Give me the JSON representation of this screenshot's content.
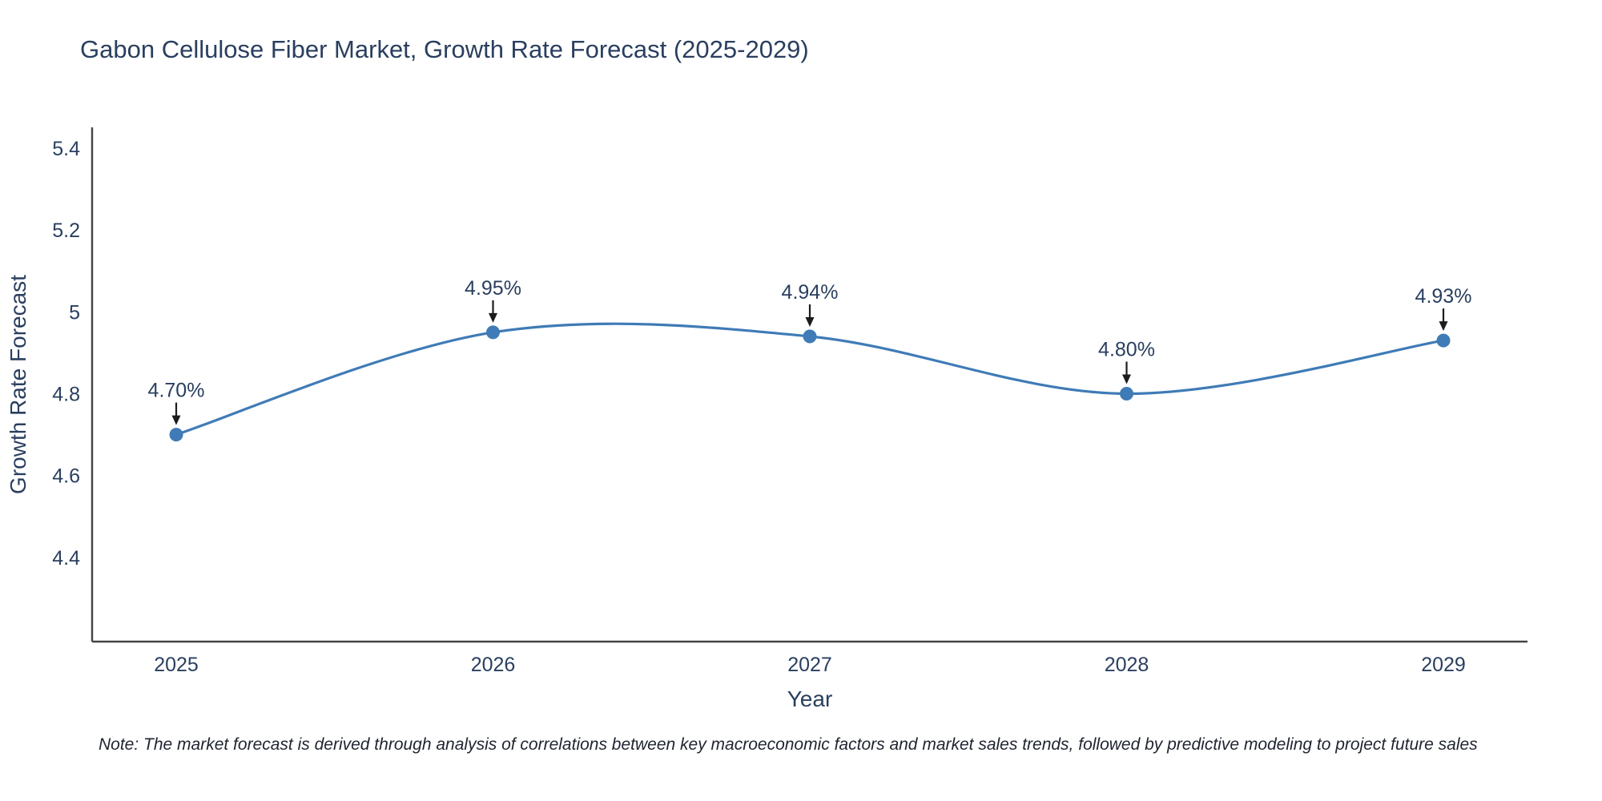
{
  "figure": {
    "title": "Gabon Cellulose Fiber Market, Growth Rate Forecast (2025-2029)",
    "note": "Note: The market forecast is derived through analysis of correlations between key macroeconomic factors and market sales trends, followed by predictive modeling to project future sales"
  },
  "chart_data": {
    "type": "line",
    "title": "Gabon Cellulose Fiber Market, Growth Rate Forecast (2025-2029)",
    "xlabel": "Year",
    "ylabel": "Growth Rate Forecast",
    "categories": [
      "2025",
      "2026",
      "2027",
      "2028",
      "2029"
    ],
    "series": [
      {
        "name": "Growth Rate Forecast",
        "values": [
          4.7,
          4.95,
          4.94,
          4.8,
          4.93
        ],
        "point_labels": [
          "4.70%",
          "4.95%",
          "4.94%",
          "4.80%",
          "4.93%"
        ]
      }
    ],
    "ylim": [
      4.194,
      5.451
    ],
    "yticks": {
      "values": [
        4.4,
        4.6,
        4.8,
        5.0,
        5.2,
        5.4
      ],
      "labels": [
        "4.4",
        "4.6",
        "4.8",
        "5",
        "5.2",
        "5.4"
      ]
    },
    "line_shape": "spline",
    "grid": false,
    "legend_position": "none",
    "colors": {
      "line": "#3f7bb6",
      "marker": "#3f7bb6",
      "axis": "#444444",
      "text": "#2a3f5f",
      "annotation_arrow": "#1c1c1c",
      "background": "#ffffff"
    }
  }
}
